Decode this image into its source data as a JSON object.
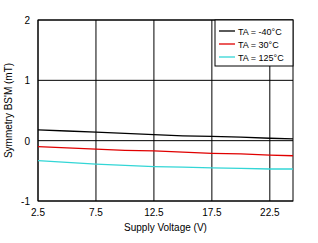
{
  "chart_data": {
    "type": "line",
    "x_label": "Supply Voltage (V)",
    "y_label": "Symmetry BS'M (mT)",
    "x": [
      2.5,
      5,
      7.5,
      10,
      12.5,
      15,
      17.5,
      20,
      22.5,
      24.5
    ],
    "series": [
      {
        "name": "TA = -40°C",
        "color": "#000000",
        "values": [
          0.18,
          0.16,
          0.14,
          0.12,
          0.1,
          0.08,
          0.07,
          0.06,
          0.04,
          0.03
        ]
      },
      {
        "name": "TA = 30°C",
        "color": "#e00000",
        "values": [
          -0.1,
          -0.12,
          -0.14,
          -0.16,
          -0.17,
          -0.19,
          -0.21,
          -0.22,
          -0.24,
          -0.25
        ]
      },
      {
        "name": "TA = 125°C",
        "color": "#33d6d6",
        "values": [
          -0.33,
          -0.36,
          -0.39,
          -0.41,
          -0.43,
          -0.44,
          -0.45,
          -0.46,
          -0.47,
          -0.47
        ]
      }
    ],
    "xlim": [
      2.5,
      24.5
    ],
    "xticks": [
      2.5,
      7.5,
      12.5,
      17.5,
      22.5
    ],
    "ylim": [
      -1,
      2
    ],
    "yticks": [
      -1,
      0,
      1,
      2
    ],
    "grid": true,
    "legend": "top-right"
  }
}
